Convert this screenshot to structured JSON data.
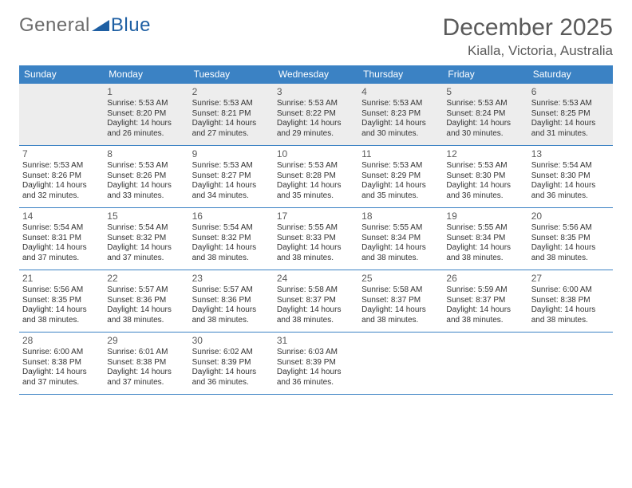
{
  "brand": {
    "part1": "General",
    "part2": "Blue",
    "logo_color": "#1e5fa3"
  },
  "header": {
    "month_title": "December 2025",
    "location": "Kialla, Victoria, Australia"
  },
  "colors": {
    "header_bg": "#3b82c4",
    "header_text": "#ffffff",
    "rule": "#3b82c4",
    "text": "#333333",
    "muted": "#5a5a5a",
    "firstweek_bg": "#ededed"
  },
  "days_of_week": [
    "Sunday",
    "Monday",
    "Tuesday",
    "Wednesday",
    "Thursday",
    "Friday",
    "Saturday"
  ],
  "grid": {
    "lead_blanks": 1,
    "days": [
      {
        "n": 1,
        "sunrise": "5:53 AM",
        "sunset": "8:20 PM",
        "daylight": "14 hours and 26 minutes."
      },
      {
        "n": 2,
        "sunrise": "5:53 AM",
        "sunset": "8:21 PM",
        "daylight": "14 hours and 27 minutes."
      },
      {
        "n": 3,
        "sunrise": "5:53 AM",
        "sunset": "8:22 PM",
        "daylight": "14 hours and 29 minutes."
      },
      {
        "n": 4,
        "sunrise": "5:53 AM",
        "sunset": "8:23 PM",
        "daylight": "14 hours and 30 minutes."
      },
      {
        "n": 5,
        "sunrise": "5:53 AM",
        "sunset": "8:24 PM",
        "daylight": "14 hours and 30 minutes."
      },
      {
        "n": 6,
        "sunrise": "5:53 AM",
        "sunset": "8:25 PM",
        "daylight": "14 hours and 31 minutes."
      },
      {
        "n": 7,
        "sunrise": "5:53 AM",
        "sunset": "8:26 PM",
        "daylight": "14 hours and 32 minutes."
      },
      {
        "n": 8,
        "sunrise": "5:53 AM",
        "sunset": "8:26 PM",
        "daylight": "14 hours and 33 minutes."
      },
      {
        "n": 9,
        "sunrise": "5:53 AM",
        "sunset": "8:27 PM",
        "daylight": "14 hours and 34 minutes."
      },
      {
        "n": 10,
        "sunrise": "5:53 AM",
        "sunset": "8:28 PM",
        "daylight": "14 hours and 35 minutes."
      },
      {
        "n": 11,
        "sunrise": "5:53 AM",
        "sunset": "8:29 PM",
        "daylight": "14 hours and 35 minutes."
      },
      {
        "n": 12,
        "sunrise": "5:53 AM",
        "sunset": "8:30 PM",
        "daylight": "14 hours and 36 minutes."
      },
      {
        "n": 13,
        "sunrise": "5:54 AM",
        "sunset": "8:30 PM",
        "daylight": "14 hours and 36 minutes."
      },
      {
        "n": 14,
        "sunrise": "5:54 AM",
        "sunset": "8:31 PM",
        "daylight": "14 hours and 37 minutes."
      },
      {
        "n": 15,
        "sunrise": "5:54 AM",
        "sunset": "8:32 PM",
        "daylight": "14 hours and 37 minutes."
      },
      {
        "n": 16,
        "sunrise": "5:54 AM",
        "sunset": "8:32 PM",
        "daylight": "14 hours and 38 minutes."
      },
      {
        "n": 17,
        "sunrise": "5:55 AM",
        "sunset": "8:33 PM",
        "daylight": "14 hours and 38 minutes."
      },
      {
        "n": 18,
        "sunrise": "5:55 AM",
        "sunset": "8:34 PM",
        "daylight": "14 hours and 38 minutes."
      },
      {
        "n": 19,
        "sunrise": "5:55 AM",
        "sunset": "8:34 PM",
        "daylight": "14 hours and 38 minutes."
      },
      {
        "n": 20,
        "sunrise": "5:56 AM",
        "sunset": "8:35 PM",
        "daylight": "14 hours and 38 minutes."
      },
      {
        "n": 21,
        "sunrise": "5:56 AM",
        "sunset": "8:35 PM",
        "daylight": "14 hours and 38 minutes."
      },
      {
        "n": 22,
        "sunrise": "5:57 AM",
        "sunset": "8:36 PM",
        "daylight": "14 hours and 38 minutes."
      },
      {
        "n": 23,
        "sunrise": "5:57 AM",
        "sunset": "8:36 PM",
        "daylight": "14 hours and 38 minutes."
      },
      {
        "n": 24,
        "sunrise": "5:58 AM",
        "sunset": "8:37 PM",
        "daylight": "14 hours and 38 minutes."
      },
      {
        "n": 25,
        "sunrise": "5:58 AM",
        "sunset": "8:37 PM",
        "daylight": "14 hours and 38 minutes."
      },
      {
        "n": 26,
        "sunrise": "5:59 AM",
        "sunset": "8:37 PM",
        "daylight": "14 hours and 38 minutes."
      },
      {
        "n": 27,
        "sunrise": "6:00 AM",
        "sunset": "8:38 PM",
        "daylight": "14 hours and 38 minutes."
      },
      {
        "n": 28,
        "sunrise": "6:00 AM",
        "sunset": "8:38 PM",
        "daylight": "14 hours and 37 minutes."
      },
      {
        "n": 29,
        "sunrise": "6:01 AM",
        "sunset": "8:38 PM",
        "daylight": "14 hours and 37 minutes."
      },
      {
        "n": 30,
        "sunrise": "6:02 AM",
        "sunset": "8:39 PM",
        "daylight": "14 hours and 36 minutes."
      },
      {
        "n": 31,
        "sunrise": "6:03 AM",
        "sunset": "8:39 PM",
        "daylight": "14 hours and 36 minutes."
      }
    ]
  },
  "labels": {
    "sunrise_prefix": "Sunrise: ",
    "sunset_prefix": "Sunset: ",
    "daylight_prefix": "Daylight: "
  }
}
